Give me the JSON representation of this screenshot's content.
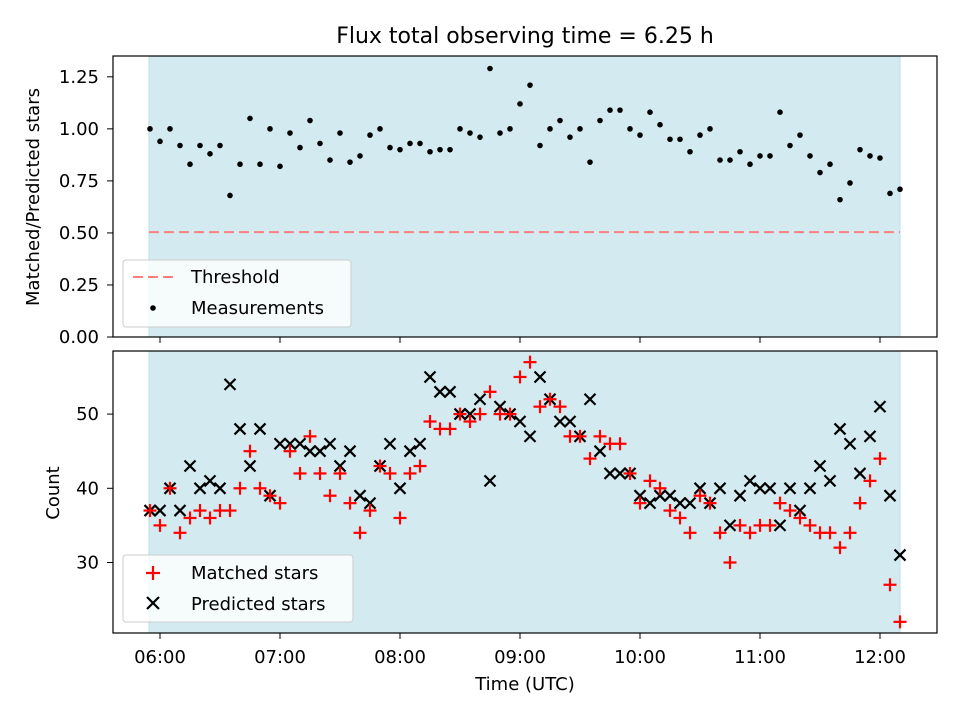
{
  "chart_data": {
    "title": "Flux total observing time = 6.25 h",
    "xlabel": "Time (UTC)",
    "x_ticks": [
      "06:00",
      "07:00",
      "08:00",
      "09:00",
      "10:00",
      "11:00",
      "12:00"
    ],
    "observing_window": [
      "05:55",
      "12:10"
    ],
    "window_color": "#d3ebf0",
    "panels": [
      {
        "type": "scatter",
        "ylabel": "Matched/Predicted stars",
        "ylim": [
          0,
          1.35
        ],
        "yticks": [
          "0.00",
          "0.25",
          "0.50",
          "0.75",
          "1.00",
          "1.25"
        ],
        "threshold": {
          "name": "Threshold",
          "value": 0.5,
          "color": "#ff7f7f",
          "style": "dashed"
        },
        "legend_position": "lower-left",
        "series": [
          {
            "name": "Measurements",
            "color": "#000000",
            "marker": "dot",
            "x": [
              "05:55",
              "06:00",
              "06:05",
              "06:10",
              "06:15",
              "06:20",
              "06:25",
              "06:30",
              "06:35",
              "06:40",
              "06:45",
              "06:50",
              "06:55",
              "07:00",
              "07:05",
              "07:10",
              "07:15",
              "07:20",
              "07:25",
              "07:30",
              "07:35",
              "07:40",
              "07:45",
              "07:50",
              "07:55",
              "08:00",
              "08:05",
              "08:10",
              "08:15",
              "08:20",
              "08:25",
              "08:30",
              "08:35",
              "08:40",
              "08:45",
              "08:50",
              "08:55",
              "09:00",
              "09:05",
              "09:10",
              "09:15",
              "09:20",
              "09:25",
              "09:30",
              "09:35",
              "09:40",
              "09:45",
              "09:50",
              "09:55",
              "10:00",
              "10:05",
              "10:10",
              "10:15",
              "10:20",
              "10:25",
              "10:30",
              "10:35",
              "10:40",
              "10:45",
              "10:50",
              "10:55",
              "11:00",
              "11:05",
              "11:10",
              "11:15",
              "11:20",
              "11:25",
              "11:30",
              "11:35",
              "11:40",
              "11:45",
              "11:50",
              "11:55",
              "12:00",
              "12:05",
              "12:10"
            ],
            "values": [
              1.0,
              0.94,
              1.0,
              0.92,
              0.83,
              0.92,
              0.88,
              0.92,
              0.68,
              0.83,
              1.05,
              0.83,
              1.0,
              0.82,
              0.98,
              0.91,
              1.04,
              0.93,
              0.85,
              0.98,
              0.84,
              0.87,
              0.97,
              1.0,
              0.91,
              0.9,
              0.93,
              0.93,
              0.89,
              0.9,
              0.9,
              1.0,
              0.98,
              0.96,
              1.29,
              0.98,
              1.0,
              1.12,
              1.21,
              0.92,
              1.0,
              1.04,
              0.96,
              1.0,
              0.84,
              1.04,
              1.09,
              1.09,
              1.0,
              0.97,
              1.08,
              1.02,
              0.95,
              0.95,
              0.89,
              0.97,
              1.0,
              0.85,
              0.85,
              0.89,
              0.83,
              0.87,
              0.87,
              1.08,
              0.92,
              0.97,
              0.87,
              0.79,
              0.83,
              0.66,
              0.74,
              0.9,
              0.87,
              0.86,
              0.69,
              0.71
            ]
          }
        ]
      },
      {
        "type": "scatter",
        "ylabel": "Count",
        "ylim": [
          20.5,
          58.5
        ],
        "yticks": [
          "30",
          "40",
          "50"
        ],
        "legend_position": "lower-left",
        "series": [
          {
            "name": "Matched stars",
            "color": "#ff0000",
            "marker": "plus",
            "x": [
              "05:55",
              "06:00",
              "06:05",
              "06:10",
              "06:15",
              "06:20",
              "06:25",
              "06:30",
              "06:35",
              "06:40",
              "06:45",
              "06:50",
              "06:55",
              "07:00",
              "07:05",
              "07:10",
              "07:15",
              "07:20",
              "07:25",
              "07:30",
              "07:35",
              "07:40",
              "07:45",
              "07:50",
              "07:55",
              "08:00",
              "08:05",
              "08:10",
              "08:15",
              "08:20",
              "08:25",
              "08:30",
              "08:35",
              "08:40",
              "08:45",
              "08:50",
              "08:55",
              "09:00",
              "09:05",
              "09:10",
              "09:15",
              "09:20",
              "09:25",
              "09:30",
              "09:35",
              "09:40",
              "09:45",
              "09:50",
              "09:55",
              "10:00",
              "10:05",
              "10:10",
              "10:15",
              "10:20",
              "10:25",
              "10:30",
              "10:35",
              "10:40",
              "10:45",
              "10:50",
              "10:55",
              "11:00",
              "11:05",
              "11:10",
              "11:15",
              "11:20",
              "11:25",
              "11:30",
              "11:35",
              "11:40",
              "11:45",
              "11:50",
              "11:55",
              "12:00",
              "12:05",
              "12:10"
            ],
            "values": [
              37,
              35,
              40,
              34,
              36,
              37,
              36,
              37,
              37,
              40,
              45,
              40,
              39,
              38,
              45,
              42,
              47,
              42,
              39,
              42,
              38,
              34,
              37,
              43,
              42,
              36,
              42,
              43,
              49,
              48,
              48,
              50,
              49,
              50,
              53,
              50,
              50,
              55,
              57,
              51,
              52,
              51,
              47,
              47,
              44,
              47,
              46,
              46,
              42,
              38,
              41,
              40,
              37,
              36,
              34,
              39,
              38,
              34,
              30,
              35,
              34,
              35,
              35,
              38,
              37,
              36,
              35,
              34,
              34,
              32,
              34,
              38,
              41,
              44,
              27,
              22
            ]
          },
          {
            "name": "Predicted stars",
            "color": "#000000",
            "marker": "x",
            "x": [
              "05:55",
              "06:00",
              "06:05",
              "06:10",
              "06:15",
              "06:20",
              "06:25",
              "06:30",
              "06:35",
              "06:40",
              "06:45",
              "06:50",
              "06:55",
              "07:00",
              "07:05",
              "07:10",
              "07:15",
              "07:20",
              "07:25",
              "07:30",
              "07:35",
              "07:40",
              "07:45",
              "07:50",
              "07:55",
              "08:00",
              "08:05",
              "08:10",
              "08:15",
              "08:20",
              "08:25",
              "08:30",
              "08:35",
              "08:40",
              "08:45",
              "08:50",
              "08:55",
              "09:00",
              "09:05",
              "09:10",
              "09:15",
              "09:20",
              "09:25",
              "09:30",
              "09:35",
              "09:40",
              "09:45",
              "09:50",
              "09:55",
              "10:00",
              "10:05",
              "10:10",
              "10:15",
              "10:20",
              "10:25",
              "10:30",
              "10:35",
              "10:40",
              "10:45",
              "10:50",
              "10:55",
              "11:00",
              "11:05",
              "11:10",
              "11:15",
              "11:20",
              "11:25",
              "11:30",
              "11:35",
              "11:40",
              "11:45",
              "11:50",
              "11:55",
              "12:00",
              "12:05",
              "12:10"
            ],
            "values": [
              37,
              37,
              40,
              37,
              43,
              40,
              41,
              40,
              54,
              48,
              43,
              48,
              39,
              46,
              46,
              46,
              45,
              45,
              46,
              43,
              45,
              39,
              38,
              43,
              46,
              40,
              45,
              46,
              55,
              53,
              53,
              50,
              50,
              52,
              41,
              51,
              50,
              49,
              47,
              55,
              52,
              49,
              49,
              47,
              52,
              45,
              42,
              42,
              42,
              39,
              38,
              39,
              39,
              38,
              38,
              40,
              38,
              40,
              35,
              39,
              41,
              40,
              40,
              35,
              40,
              37,
              40,
              43,
              41,
              48,
              46,
              42,
              47,
              51,
              39,
              31
            ]
          }
        ]
      }
    ]
  }
}
